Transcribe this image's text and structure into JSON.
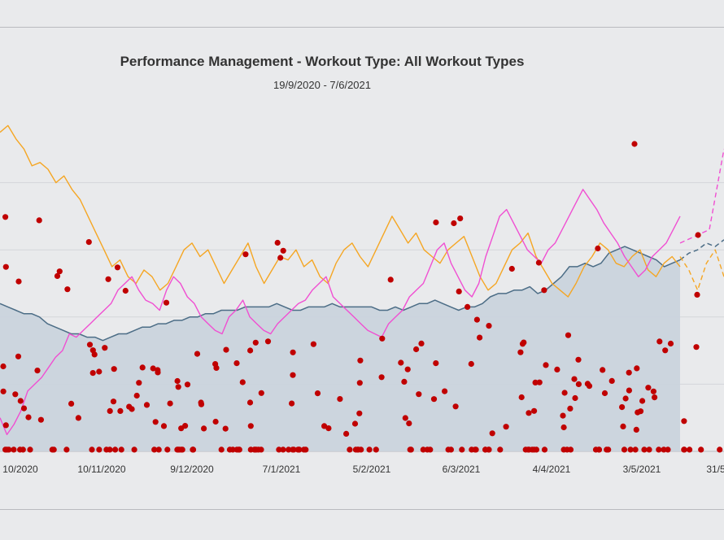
{
  "chart_data": {
    "type": "line",
    "title": "Performance Management - Workout Type: All Workout Types",
    "subtitle": "19/9/2020 - 7/6/2021",
    "x_ticks": [
      "10/2020",
      "10/11/2020",
      "9/12/2020",
      "7/1/2021",
      "5/2/2021",
      "6/3/2021",
      "4/4/2021",
      "3/5/2021",
      "31/5"
    ],
    "x_range": [
      "2020-09-19",
      "2021-06-07"
    ],
    "y_range": [
      0,
      100
    ],
    "grid": true,
    "legend": "none",
    "series": [
      {
        "color": "#4c6d86",
        "fill": "#c9d3dd",
        "style": "solid",
        "values": [
          44,
          43,
          42,
          41,
          41,
          40,
          38,
          37,
          36,
          35,
          35,
          34,
          34,
          33,
          34,
          35,
          35,
          36,
          37,
          37,
          38,
          38,
          39,
          39,
          40,
          40,
          41,
          41,
          42,
          42,
          42,
          43,
          43,
          43,
          43,
          44,
          43,
          42,
          42,
          43,
          43,
          43,
          44,
          43,
          43,
          43,
          43,
          43,
          42,
          42,
          43,
          42,
          43,
          44,
          44,
          45,
          44,
          43,
          42,
          43,
          43,
          44,
          46,
          47,
          47,
          48,
          48,
          49,
          47,
          48,
          50,
          52,
          55,
          55,
          56,
          55,
          56,
          59,
          60,
          61,
          60,
          59,
          58,
          57,
          55,
          56,
          57
        ]
      },
      {
        "color": "#4c6d86",
        "style": "dashed",
        "values": [
          57,
          59,
          60,
          62,
          61,
          63
        ]
      },
      {
        "color": "#f5a623",
        "style": "solid",
        "values": [
          95,
          97,
          93,
          90,
          85,
          86,
          84,
          80,
          82,
          78,
          75,
          70,
          65,
          60,
          55,
          57,
          52,
          50,
          54,
          52,
          48,
          50,
          55,
          60,
          62,
          58,
          60,
          55,
          50,
          54,
          58,
          62,
          55,
          50,
          54,
          58,
          57,
          60,
          55,
          57,
          52,
          50,
          56,
          60,
          62,
          58,
          55,
          60,
          65,
          70,
          66,
          62,
          65,
          60,
          58,
          56,
          60,
          62,
          64,
          58,
          52,
          48,
          50,
          55,
          60,
          62,
          65,
          58,
          54,
          50,
          48,
          46,
          50,
          55,
          58,
          62,
          60,
          56,
          55,
          58,
          60,
          54,
          52,
          56,
          58,
          55
        ]
      },
      {
        "color": "#f5a623",
        "style": "dashed",
        "values": [
          58,
          54,
          48,
          56,
          60,
          52
        ]
      },
      {
        "color": "#f04fd2",
        "style": "solid",
        "values": [
          10,
          5,
          8,
          12,
          18,
          20,
          22,
          25,
          28,
          30,
          35,
          34,
          36,
          38,
          40,
          42,
          44,
          48,
          50,
          52,
          48,
          45,
          44,
          42,
          48,
          52,
          50,
          46,
          44,
          40,
          38,
          36,
          35,
          40,
          42,
          45,
          40,
          38,
          36,
          35,
          38,
          40,
          42,
          44,
          45,
          48,
          50,
          52,
          46,
          44,
          42,
          40,
          38,
          36,
          35,
          34,
          38,
          40,
          42,
          46,
          48,
          50,
          55,
          60,
          62,
          56,
          52,
          48,
          46,
          50,
          58,
          64,
          70,
          72,
          68,
          64,
          60,
          58,
          56,
          60,
          62,
          66,
          70,
          74,
          78,
          75,
          72,
          68,
          65,
          62,
          58,
          55,
          52,
          54,
          58,
          60,
          62,
          66,
          70
        ]
      },
      {
        "color": "#f04fd2",
        "style": "dashed",
        "values": [
          62,
          64,
          66,
          90
        ]
      }
    ],
    "markers": {
      "color": "#c00000",
      "style": "dots"
    }
  }
}
